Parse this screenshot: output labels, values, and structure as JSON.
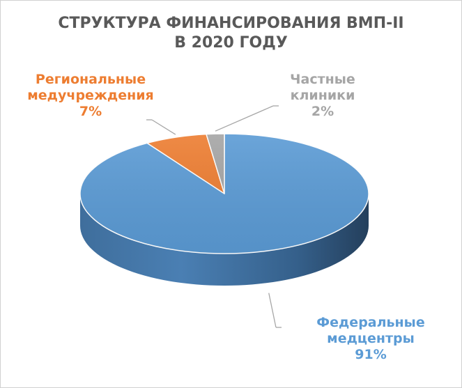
{
  "chart_data": {
    "type": "pie",
    "title": [
      "СТРУКТУРА ФИНАНСИРОВАНИЯ ВМП-II",
      "В 2020 ГОДУ"
    ],
    "slices": [
      {
        "name": [
          "Федеральные",
          "медцентры"
        ],
        "value": 91,
        "value_label": "91%",
        "color": "#5B9BD5"
      },
      {
        "name": [
          "Региональные",
          "медучреждения"
        ],
        "value": 7,
        "value_label": "7%",
        "color": "#ED7D31"
      },
      {
        "name": [
          "Частные",
          "клиники"
        ],
        "value": 2,
        "value_label": "2%",
        "color": "#A5A5A5"
      }
    ],
    "legend": "none",
    "style": "3d"
  }
}
